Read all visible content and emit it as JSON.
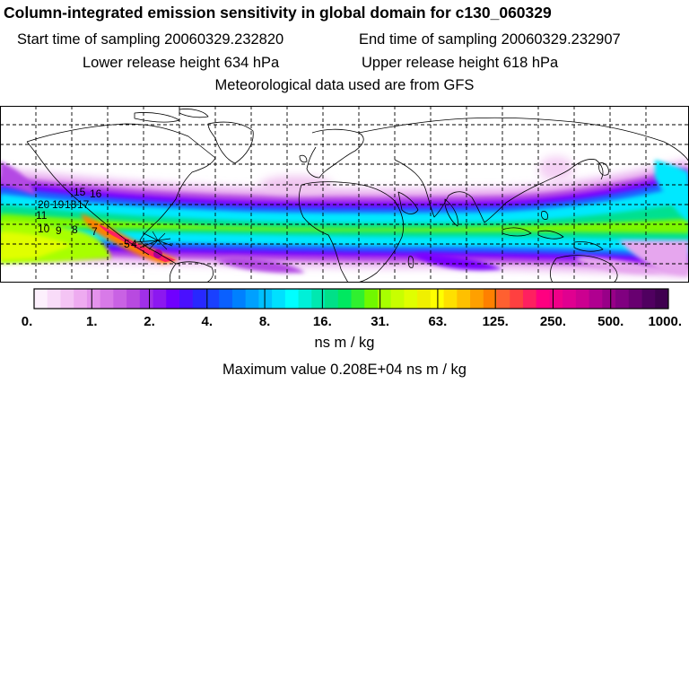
{
  "header": {
    "title": "Column-integrated emission sensitivity in global domain for c130_060329",
    "start_time": "Start time of sampling 20060329.232820",
    "end_time": "End time of sampling 20060329.232907",
    "lower_height": "Lower release height  634 hPa",
    "upper_height": "Upper release height  618 hPa",
    "met_data": "Meteorological data used are from GFS"
  },
  "map": {
    "projection": "cylindrical",
    "grid": true,
    "contour_labels": [
      "15",
      "20",
      "19",
      "18",
      "17",
      "16",
      "11",
      "10",
      "9",
      "8",
      "7",
      "5",
      "4"
    ]
  },
  "colorbar": {
    "tick_labels": [
      "0.",
      "1.",
      "2.",
      "4.",
      "8.",
      "16.",
      "31.",
      "63.",
      "125.",
      "250.",
      "500.",
      "1000."
    ],
    "colors": [
      "#fdf0fd",
      "#f9dcf9",
      "#f4c4f4",
      "#eeabf0",
      "#e493ec",
      "#d87ae8",
      "#c962e4",
      "#b84ae0",
      "#a030e8",
      "#8c18f0",
      "#7000ff",
      "#4a10ff",
      "#2828ff",
      "#1a40ff",
      "#0a60ff",
      "#0080ff",
      "#00a0ff",
      "#00c0ff",
      "#00e0ff",
      "#00ffff",
      "#00f0d8",
      "#00e8b0",
      "#00e088",
      "#00e860",
      "#30f030",
      "#70f800",
      "#a8ff00",
      "#c8ff00",
      "#e0ff00",
      "#f0f000",
      "#ffff00",
      "#ffe000",
      "#ffc000",
      "#ffa000",
      "#ff8000",
      "#ff6030",
      "#ff4040",
      "#ff2060",
      "#ff0080",
      "#f00088",
      "#e00090",
      "#cc0090",
      "#b00090",
      "#980088",
      "#800080",
      "#680070",
      "#500060",
      "#400050"
    ],
    "unit": "ns m / kg"
  },
  "footer": {
    "max_value": "Maximum value  0.208E+04 ns m / kg"
  }
}
